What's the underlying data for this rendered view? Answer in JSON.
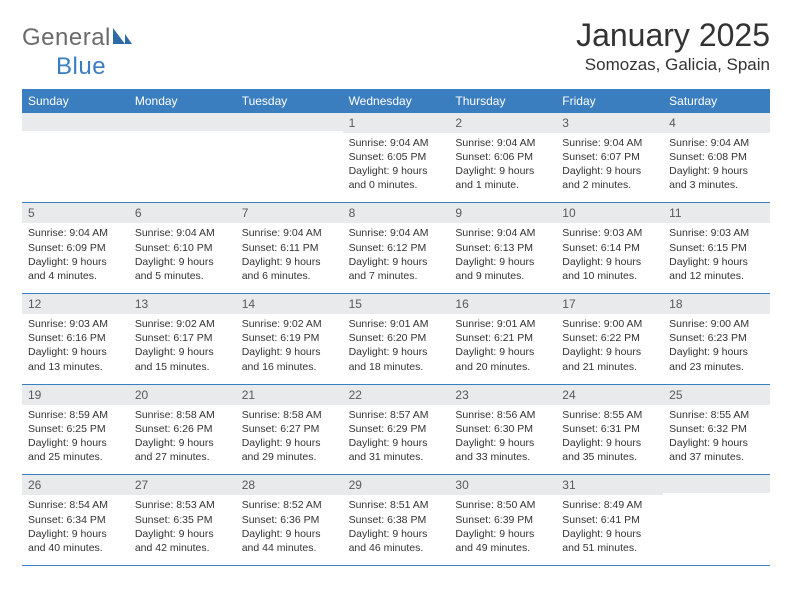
{
  "logo": {
    "text_left": "General",
    "text_right": "Blue"
  },
  "title": "January 2025",
  "location": "Somozas, Galicia, Spain",
  "colors": {
    "header_bg": "#3b7ec0",
    "daynum_bg": "#e9eaeb",
    "rule": "#3b7ec0",
    "text": "#333333",
    "logo_gray": "#6b6b6b",
    "logo_blue": "#3b7ec0"
  },
  "weekdays": [
    "Sunday",
    "Monday",
    "Tuesday",
    "Wednesday",
    "Thursday",
    "Friday",
    "Saturday"
  ],
  "first_weekday_index": 3,
  "days": [
    {
      "n": "1",
      "sunrise": "9:04 AM",
      "sunset": "6:05 PM",
      "daylight": "9 hours and 0 minutes."
    },
    {
      "n": "2",
      "sunrise": "9:04 AM",
      "sunset": "6:06 PM",
      "daylight": "9 hours and 1 minute."
    },
    {
      "n": "3",
      "sunrise": "9:04 AM",
      "sunset": "6:07 PM",
      "daylight": "9 hours and 2 minutes."
    },
    {
      "n": "4",
      "sunrise": "9:04 AM",
      "sunset": "6:08 PM",
      "daylight": "9 hours and 3 minutes."
    },
    {
      "n": "5",
      "sunrise": "9:04 AM",
      "sunset": "6:09 PM",
      "daylight": "9 hours and 4 minutes."
    },
    {
      "n": "6",
      "sunrise": "9:04 AM",
      "sunset": "6:10 PM",
      "daylight": "9 hours and 5 minutes."
    },
    {
      "n": "7",
      "sunrise": "9:04 AM",
      "sunset": "6:11 PM",
      "daylight": "9 hours and 6 minutes."
    },
    {
      "n": "8",
      "sunrise": "9:04 AM",
      "sunset": "6:12 PM",
      "daylight": "9 hours and 7 minutes."
    },
    {
      "n": "9",
      "sunrise": "9:04 AM",
      "sunset": "6:13 PM",
      "daylight": "9 hours and 9 minutes."
    },
    {
      "n": "10",
      "sunrise": "9:03 AM",
      "sunset": "6:14 PM",
      "daylight": "9 hours and 10 minutes."
    },
    {
      "n": "11",
      "sunrise": "9:03 AM",
      "sunset": "6:15 PM",
      "daylight": "9 hours and 12 minutes."
    },
    {
      "n": "12",
      "sunrise": "9:03 AM",
      "sunset": "6:16 PM",
      "daylight": "9 hours and 13 minutes."
    },
    {
      "n": "13",
      "sunrise": "9:02 AM",
      "sunset": "6:17 PM",
      "daylight": "9 hours and 15 minutes."
    },
    {
      "n": "14",
      "sunrise": "9:02 AM",
      "sunset": "6:19 PM",
      "daylight": "9 hours and 16 minutes."
    },
    {
      "n": "15",
      "sunrise": "9:01 AM",
      "sunset": "6:20 PM",
      "daylight": "9 hours and 18 minutes."
    },
    {
      "n": "16",
      "sunrise": "9:01 AM",
      "sunset": "6:21 PM",
      "daylight": "9 hours and 20 minutes."
    },
    {
      "n": "17",
      "sunrise": "9:00 AM",
      "sunset": "6:22 PM",
      "daylight": "9 hours and 21 minutes."
    },
    {
      "n": "18",
      "sunrise": "9:00 AM",
      "sunset": "6:23 PM",
      "daylight": "9 hours and 23 minutes."
    },
    {
      "n": "19",
      "sunrise": "8:59 AM",
      "sunset": "6:25 PM",
      "daylight": "9 hours and 25 minutes."
    },
    {
      "n": "20",
      "sunrise": "8:58 AM",
      "sunset": "6:26 PM",
      "daylight": "9 hours and 27 minutes."
    },
    {
      "n": "21",
      "sunrise": "8:58 AM",
      "sunset": "6:27 PM",
      "daylight": "9 hours and 29 minutes."
    },
    {
      "n": "22",
      "sunrise": "8:57 AM",
      "sunset": "6:29 PM",
      "daylight": "9 hours and 31 minutes."
    },
    {
      "n": "23",
      "sunrise": "8:56 AM",
      "sunset": "6:30 PM",
      "daylight": "9 hours and 33 minutes."
    },
    {
      "n": "24",
      "sunrise": "8:55 AM",
      "sunset": "6:31 PM",
      "daylight": "9 hours and 35 minutes."
    },
    {
      "n": "25",
      "sunrise": "8:55 AM",
      "sunset": "6:32 PM",
      "daylight": "9 hours and 37 minutes."
    },
    {
      "n": "26",
      "sunrise": "8:54 AM",
      "sunset": "6:34 PM",
      "daylight": "9 hours and 40 minutes."
    },
    {
      "n": "27",
      "sunrise": "8:53 AM",
      "sunset": "6:35 PM",
      "daylight": "9 hours and 42 minutes."
    },
    {
      "n": "28",
      "sunrise": "8:52 AM",
      "sunset": "6:36 PM",
      "daylight": "9 hours and 44 minutes."
    },
    {
      "n": "29",
      "sunrise": "8:51 AM",
      "sunset": "6:38 PM",
      "daylight": "9 hours and 46 minutes."
    },
    {
      "n": "30",
      "sunrise": "8:50 AM",
      "sunset": "6:39 PM",
      "daylight": "9 hours and 49 minutes."
    },
    {
      "n": "31",
      "sunrise": "8:49 AM",
      "sunset": "6:41 PM",
      "daylight": "9 hours and 51 minutes."
    }
  ],
  "labels": {
    "sunrise_prefix": "Sunrise: ",
    "sunset_prefix": "Sunset: ",
    "daylight_prefix": "Daylight: "
  }
}
